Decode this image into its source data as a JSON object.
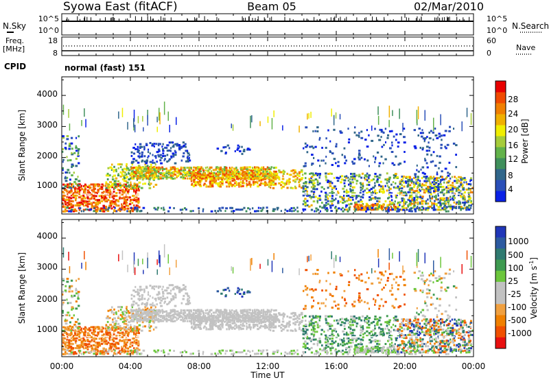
{
  "header": {
    "station": "Syowa East (fitACF)",
    "beam": "Beam 05",
    "date": "02/Mar/2010"
  },
  "status_panels": {
    "nsky": {
      "label": "N.Sky",
      "ticks": [
        "10^5",
        "10^0"
      ]
    },
    "nsearch": {
      "label": "N.Search",
      "ticks": [
        "10^5",
        "10^0"
      ]
    },
    "freq": {
      "label_line1": "Freq.",
      "label_line2": "[MHz]",
      "ticks": [
        "18",
        "8"
      ]
    },
    "nave": {
      "label": "Nave",
      "ticks": [
        "60",
        "0"
      ]
    },
    "cpid": {
      "label": "CPID",
      "value": "normal (fast) 151"
    }
  },
  "chart_data": [
    {
      "type": "heatmap",
      "name": "Power",
      "ylabel": "Slant Range [km]",
      "ylim": [
        180,
        4600
      ],
      "yticks": [
        "1000",
        "2000",
        "3000",
        "4000"
      ],
      "xlim_hours": [
        0,
        24
      ],
      "colorbar": {
        "title": "Power [dB]",
        "tick_labels": [
          "4",
          "8",
          "12",
          "16",
          "20",
          "24",
          "28"
        ],
        "range": [
          0,
          30
        ],
        "colors": [
          "#0a21e6",
          "#2a4fb8",
          "#30668a",
          "#3f8f5c",
          "#62b24a",
          "#a6cc3a",
          "#f0ee00",
          "#f0b000",
          "#f07f00",
          "#f04a00",
          "#e80000"
        ]
      }
    },
    {
      "type": "heatmap",
      "name": "Velocity",
      "ylabel": "Slant Range [km]",
      "ylim": [
        180,
        4600
      ],
      "yticks": [
        "1000",
        "2000",
        "3000",
        "4000"
      ],
      "xlim_hours": [
        0,
        24
      ],
      "xlabel": "Time UT",
      "xtick_labels": [
        "00:00",
        "04:00",
        "08:00",
        "12:00",
        "16:00",
        "20:00",
        "00:00"
      ],
      "colorbar": {
        "title_main": "Velocity  [m s",
        "title_sup": "-1",
        "title_end": "]",
        "tick_labels": [
          "1000",
          "500",
          "100",
          "25",
          "-25",
          "-100",
          "-500",
          "-1000"
        ],
        "colors": [
          "#2036b8",
          "#2c5aa0",
          "#2f7a70",
          "#3e9a50",
          "#6cc63c",
          "#c2c2c2",
          "#c2c2c2",
          "#f0a040",
          "#f08000",
          "#f05000",
          "#e81010"
        ]
      }
    }
  ]
}
